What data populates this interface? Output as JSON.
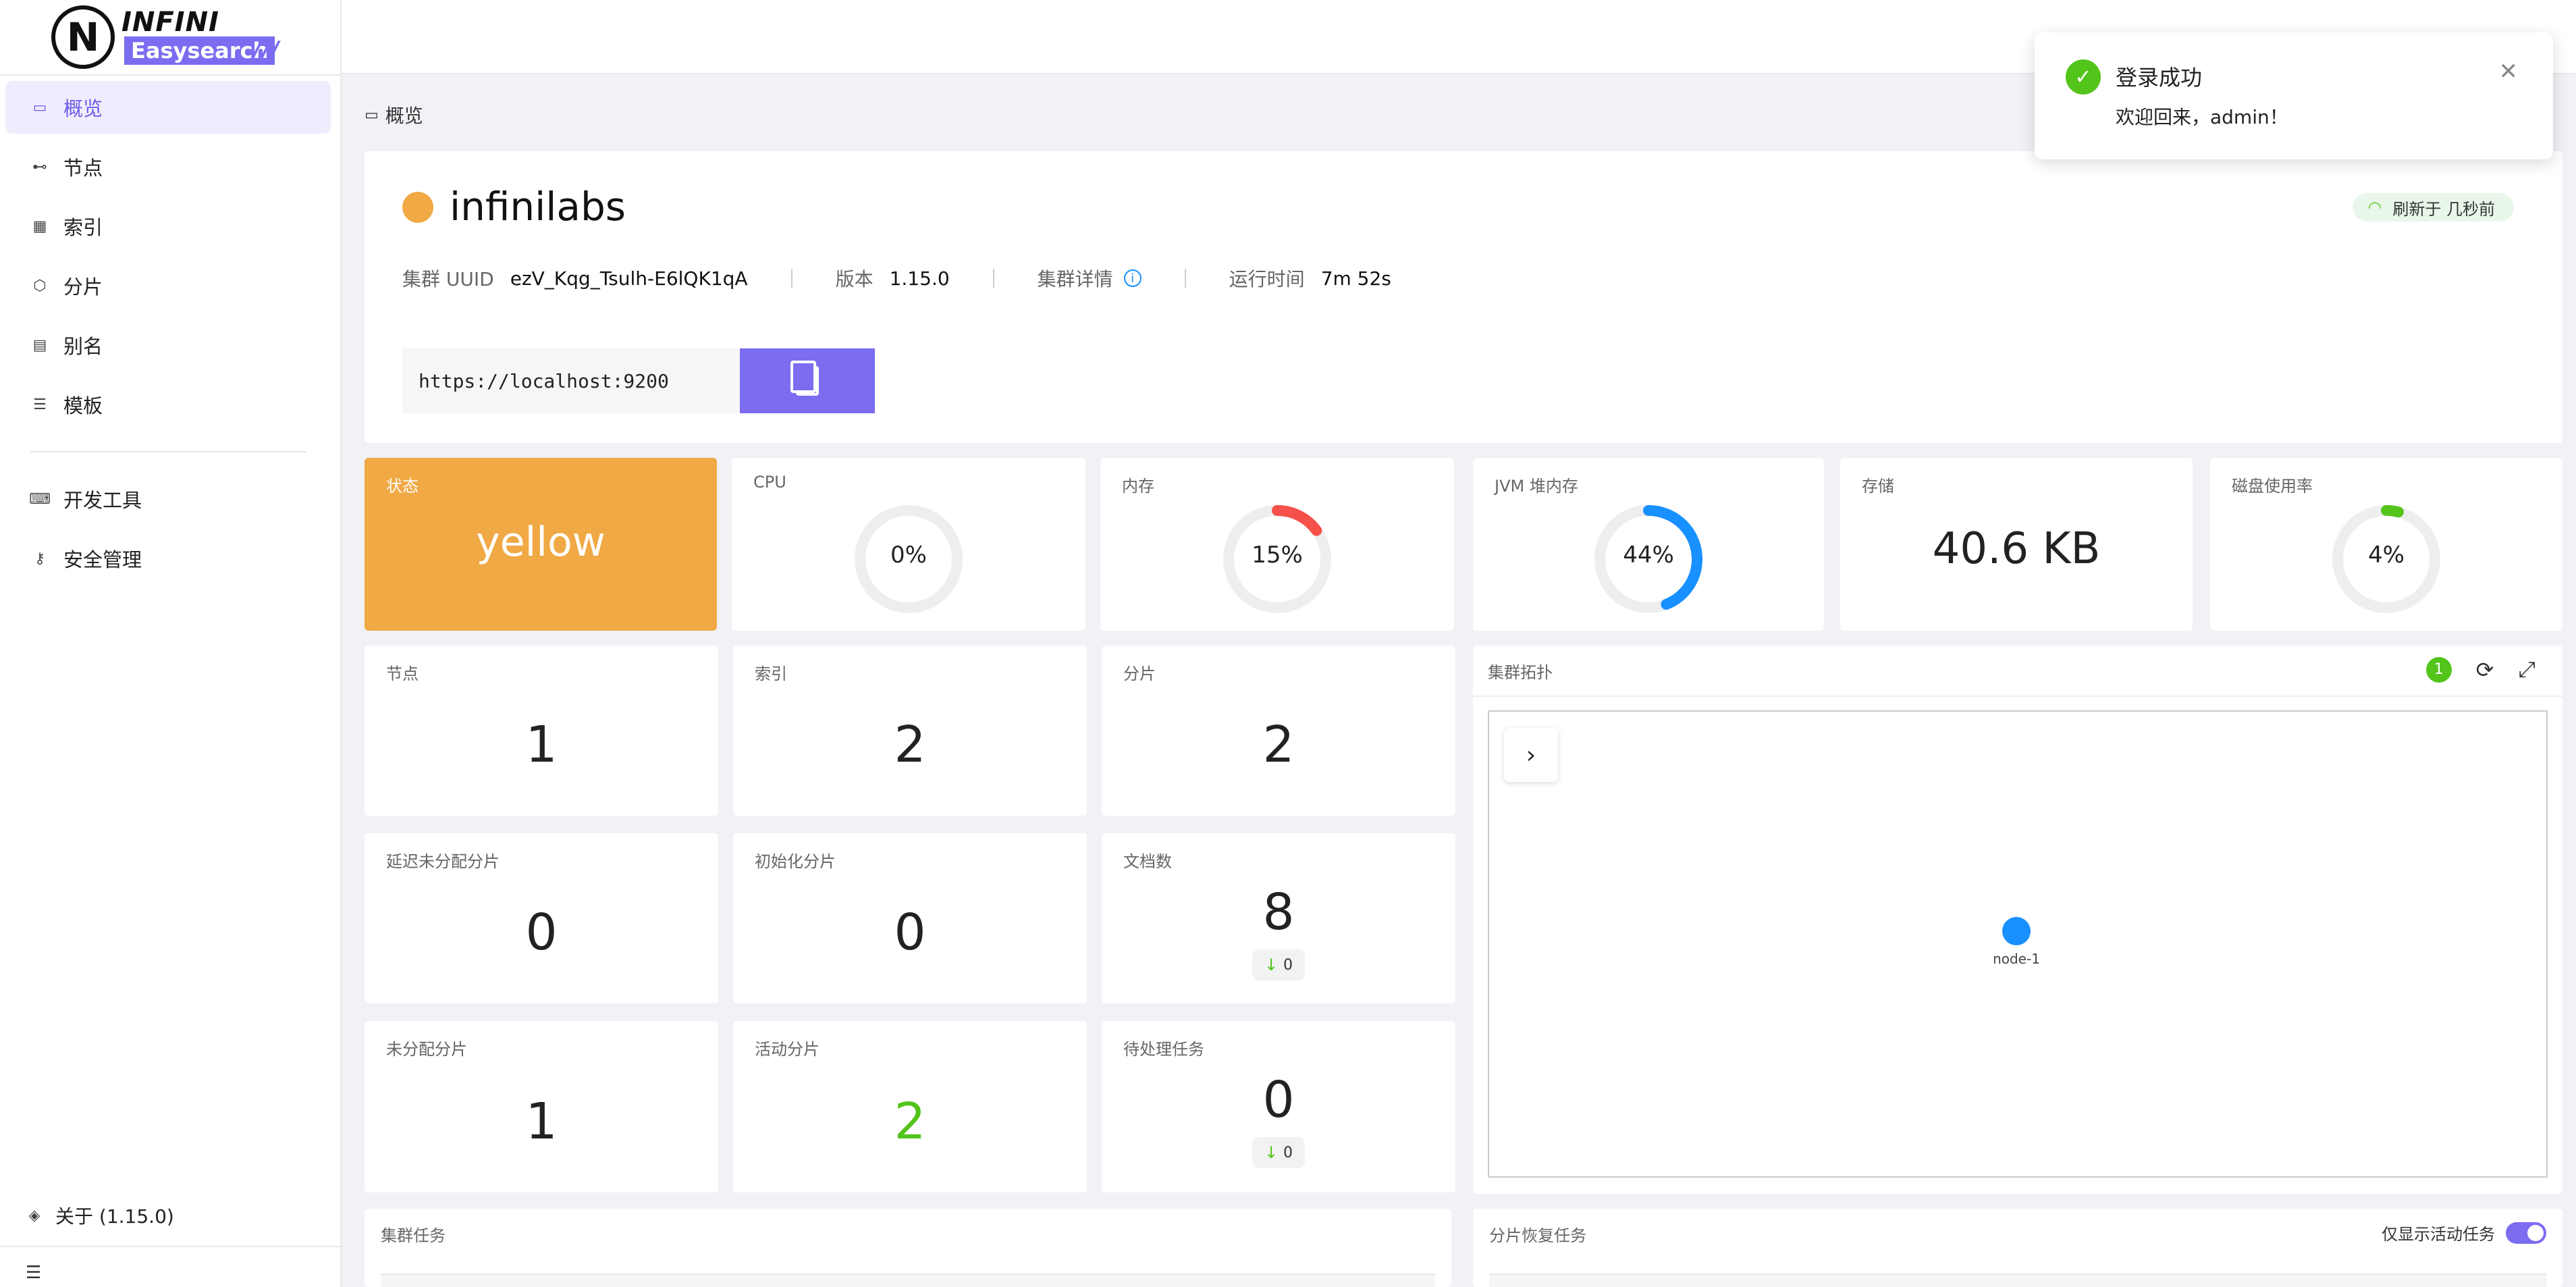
{
  "brand": {
    "name_top": "INFINI",
    "name_bottom": "Easysearch",
    "slashes": "///",
    "mark": "N"
  },
  "sidebar": {
    "items": [
      {
        "label": "概览",
        "icon": "dashboard-icon",
        "glyph": "▭"
      },
      {
        "label": "节点",
        "icon": "nodes-icon",
        "glyph": "⊷"
      },
      {
        "label": "索引",
        "icon": "table-icon",
        "glyph": "▦"
      },
      {
        "label": "分片",
        "icon": "shards-icon",
        "glyph": "⬡"
      },
      {
        "label": "别名",
        "icon": "alias-icon",
        "glyph": "▤"
      },
      {
        "label": "模板",
        "icon": "template-icon",
        "glyph": "☰"
      },
      {
        "label": "开发工具",
        "icon": "code-icon",
        "glyph": "⌨"
      },
      {
        "label": "安全管理",
        "icon": "security-icon",
        "glyph": "⚷"
      }
    ],
    "about": "关于 (1.15.0)",
    "about_glyph": "◈",
    "collapse_glyph": "☰"
  },
  "breadcrumb": {
    "label": "概览",
    "glyph": "▭"
  },
  "cluster": {
    "name": "infinilabs",
    "status_color": "#f0a944",
    "refresh": "刷新于 几秒前",
    "uuid_label": "集群 UUID",
    "uuid": "ezV_Kqg_Tsulh-E6lQK1qA",
    "version_label": "版本",
    "version": "1.15.0",
    "details_label": "集群详情",
    "uptime_label": "运行时间",
    "uptime": "7m 52s",
    "endpoint": "https://localhost:9200"
  },
  "metrics": {
    "state": {
      "label": "状态",
      "value": "yellow"
    },
    "cpu": {
      "label": "CPU",
      "text": "0%",
      "percent": 0,
      "color": "#1890ff"
    },
    "memory": {
      "label": "内存",
      "text": "15%",
      "percent": 15,
      "color": "#f5504a"
    },
    "jvm": {
      "label": "JVM 堆内存",
      "text": "44%",
      "percent": 44,
      "color": "#1890ff"
    },
    "storage": {
      "label": "存储",
      "value": "40.6 KB"
    },
    "disk": {
      "label": "磁盘使用率",
      "text": "4%",
      "percent": 4,
      "color": "#52c41a"
    },
    "nodes": {
      "label": "节点",
      "value": "1"
    },
    "indices": {
      "label": "索引",
      "value": "2"
    },
    "shards": {
      "label": "分片",
      "value": "2"
    },
    "delayed_unassigned": {
      "label": "延迟未分配分片",
      "value": "0"
    },
    "initializing": {
      "label": "初始化分片",
      "value": "0"
    },
    "docs": {
      "label": "文档数",
      "value": "8",
      "delta": "0"
    },
    "unassigned": {
      "label": "未分配分片",
      "value": "1"
    },
    "active": {
      "label": "活动分片",
      "value": "2",
      "color": "#52c41a"
    },
    "pending": {
      "label": "待处理任务",
      "value": "0",
      "delta": "0"
    }
  },
  "topology": {
    "title": "集群拓扑",
    "count": "1",
    "node": "node-1"
  },
  "tasks": {
    "cluster_title": "集群任务",
    "recovery_title": "分片恢复任务",
    "toggle_label": "仅显示活动任务"
  },
  "notification": {
    "title": "登录成功",
    "message": "欢迎回来，admin！"
  }
}
